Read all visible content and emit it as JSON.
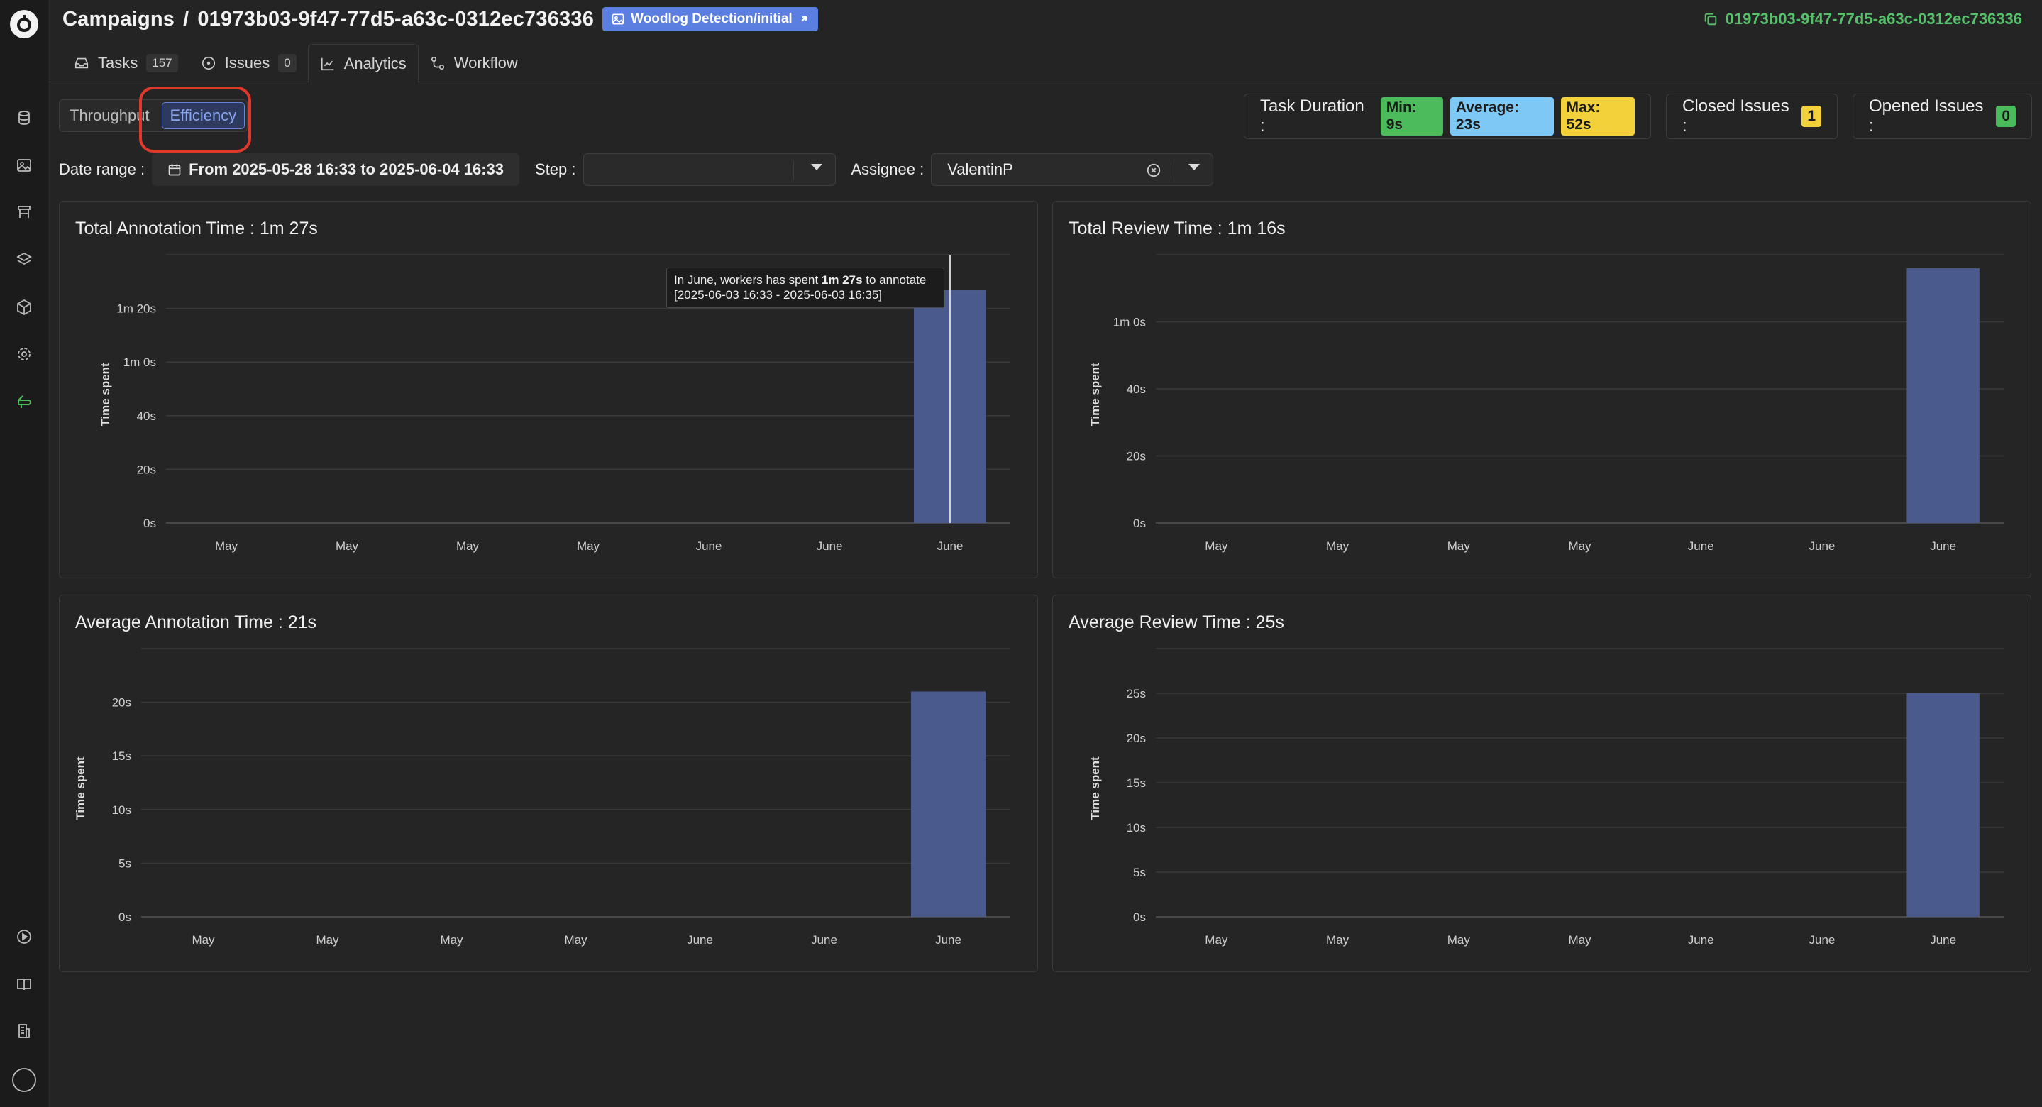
{
  "breadcrumb": {
    "root": "Campaigns",
    "separator": "/",
    "campaign_id": "01973b03-9f47-77d5-a63c-0312ec736336"
  },
  "dataset_tag": {
    "label": "Woodlog Detection/initial"
  },
  "copy_id": {
    "text": "01973b03-9f47-77d5-a63c-0312ec736336"
  },
  "tabs": [
    {
      "label": "Tasks",
      "badge": "157",
      "icon": "inbox-icon"
    },
    {
      "label": "Issues",
      "badge": "0",
      "icon": "alert-circle-icon"
    },
    {
      "label": "Analytics",
      "icon": "line-chart-icon",
      "active": true
    },
    {
      "label": "Workflow",
      "icon": "workflow-icon"
    }
  ],
  "view_toggle": {
    "throughput": "Throughput",
    "efficiency": "Efficiency",
    "selected": "Efficiency"
  },
  "stats": {
    "task_duration_label": "Task Duration :",
    "min": "Min: 9s",
    "average": "Average: 23s",
    "max": "Max: 52s",
    "closed_issues_label": "Closed Issues :",
    "closed_issues": "1",
    "opened_issues_label": "Opened Issues :",
    "opened_issues": "0"
  },
  "filters": {
    "date_label": "Date range :",
    "date_value": "From 2025-05-28 16:33 to 2025-06-04 16:33",
    "step_label": "Step :",
    "step_value": "",
    "assignee_label": "Assignee :",
    "assignee_value": "ValentinP"
  },
  "colors": {
    "bar": "#4b5a8c",
    "accent": "#5b7fe0",
    "green": "#4cbb5c",
    "blue": "#7ec8f5",
    "yellow": "#f2d13b"
  },
  "tooltip": {
    "prefix": "In June, workers has spent ",
    "value": "1m 27s",
    "suffix": " to annotate",
    "range": "[2025-06-03 16:33 - 2025-06-03 16:35]"
  },
  "chart_data": [
    {
      "type": "bar",
      "title": "Total Annotation Time : 1m 27s",
      "ylabel": "Time spent",
      "categories": [
        "May",
        "May",
        "May",
        "May",
        "June",
        "June",
        "June"
      ],
      "values": [
        0,
        0,
        0,
        0,
        0,
        0,
        87
      ],
      "ylim": [
        0,
        100
      ],
      "yticks": [
        0,
        20,
        40,
        60,
        80
      ],
      "ytick_labels": [
        "0s",
        "20s",
        "40s",
        "1m 0s",
        "1m 20s"
      ],
      "grid": true
    },
    {
      "type": "bar",
      "title": "Total Review Time : 1m 16s",
      "ylabel": "Time spent",
      "categories": [
        "May",
        "May",
        "May",
        "May",
        "June",
        "June",
        "June"
      ],
      "values": [
        0,
        0,
        0,
        0,
        0,
        0,
        76
      ],
      "ylim": [
        0,
        80
      ],
      "yticks": [
        0,
        20,
        40,
        60
      ],
      "ytick_labels": [
        "0s",
        "20s",
        "40s",
        "1m 0s"
      ],
      "grid": true
    },
    {
      "type": "bar",
      "title": "Average Annotation Time : 21s",
      "ylabel": "Time spent",
      "categories": [
        "May",
        "May",
        "May",
        "May",
        "June",
        "June",
        "June"
      ],
      "values": [
        0,
        0,
        0,
        0,
        0,
        0,
        21
      ],
      "ylim": [
        0,
        25
      ],
      "yticks": [
        0,
        5,
        10,
        15,
        20
      ],
      "ytick_labels": [
        "0s",
        "5s",
        "10s",
        "15s",
        "20s"
      ],
      "grid": true
    },
    {
      "type": "bar",
      "title": "Average Review Time : 25s",
      "ylabel": "Time spent",
      "categories": [
        "May",
        "May",
        "May",
        "May",
        "June",
        "June",
        "June"
      ],
      "values": [
        0,
        0,
        0,
        0,
        0,
        0,
        25
      ],
      "ylim": [
        0,
        30
      ],
      "yticks": [
        0,
        5,
        10,
        15,
        20,
        25
      ],
      "ytick_labels": [
        "0s",
        "5s",
        "10s",
        "15s",
        "20s",
        "25s"
      ],
      "grid": true
    }
  ]
}
